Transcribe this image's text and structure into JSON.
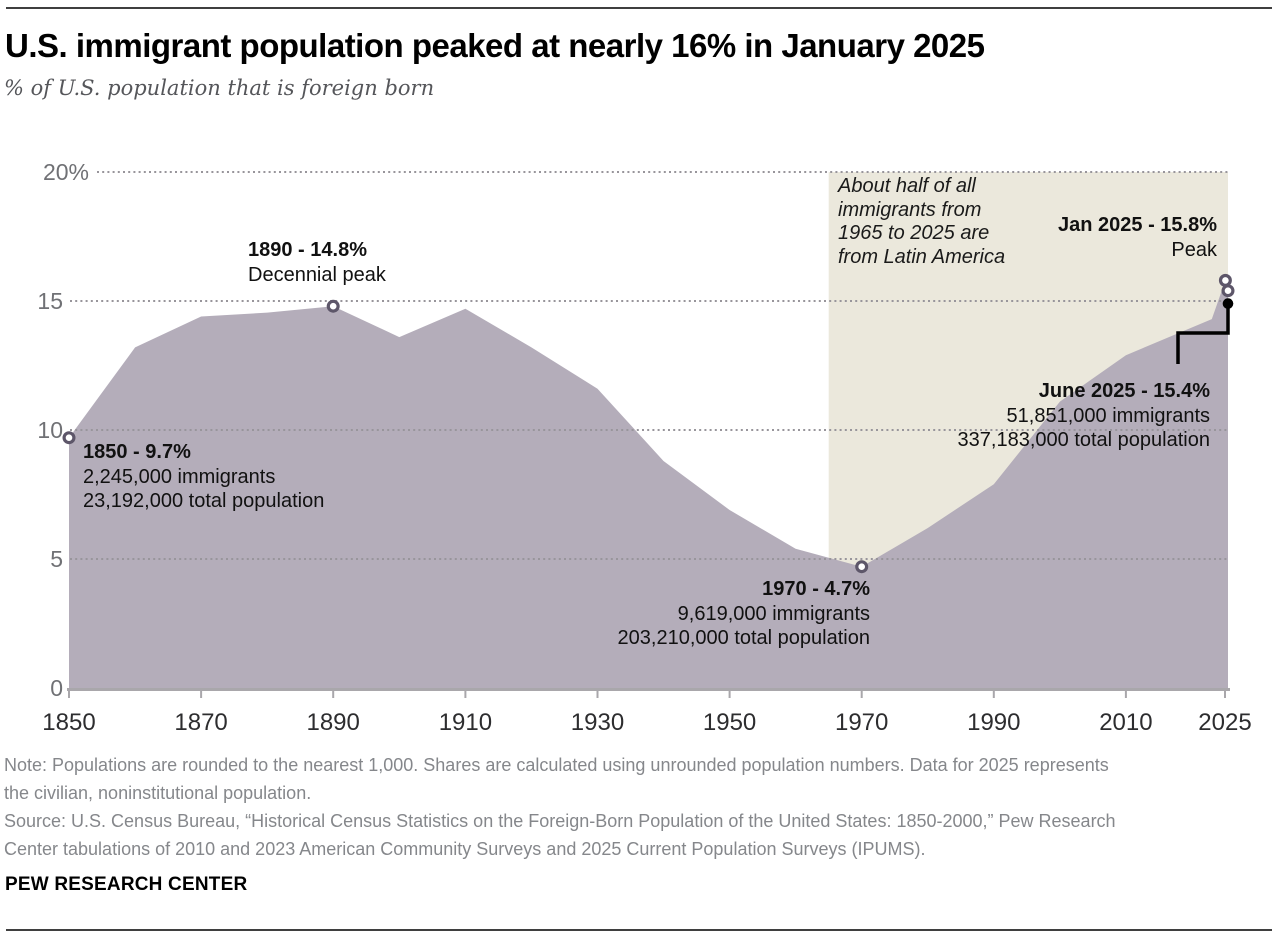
{
  "header": {
    "title": "U.S. immigrant population peaked at nearly 16% in January 2025",
    "subtitle": "% of U.S. population that is foreign born"
  },
  "chart_data": {
    "type": "area",
    "title": "U.S. immigrant population peaked at nearly 16% in January 2025",
    "subtitle": "% of U.S. population that is foreign born",
    "xlabel": "",
    "ylabel": "% of U.S. population that is foreign born",
    "xlim": [
      1850,
      2025.45
    ],
    "ylim": [
      0,
      20
    ],
    "grid": "horizontal-dotted",
    "legend": "none",
    "series": [
      {
        "name": "Foreign-born share of U.S. population (%)",
        "x": [
          1850,
          1860,
          1870,
          1880,
          1890,
          1900,
          1910,
          1920,
          1930,
          1940,
          1950,
          1960,
          1970,
          1980,
          1990,
          2000,
          2010,
          2023,
          2025.05,
          2025.45
        ],
        "values": [
          9.7,
          13.2,
          14.4,
          14.55,
          14.8,
          13.6,
          14.7,
          13.2,
          11.6,
          8.8,
          6.9,
          5.4,
          4.7,
          6.2,
          7.9,
          11.1,
          12.9,
          14.3,
          15.8,
          15.4
        ]
      }
    ],
    "xticks": [
      1850,
      1870,
      1890,
      1910,
      1930,
      1950,
      1970,
      1990,
      2010,
      2025
    ],
    "yticks": [
      {
        "value": 0,
        "label": "0"
      },
      {
        "value": 5,
        "label": "5"
      },
      {
        "value": 10,
        "label": "10"
      },
      {
        "value": 15,
        "label": "15"
      },
      {
        "value": 20,
        "label": "20%"
      }
    ],
    "area_color": "#b4adba",
    "gridline_color": "#98959b",
    "axis_color": "#a9a7ab",
    "marker_ring_color": "#5d5669",
    "leader_color": "#000000",
    "highlight_box": {
      "x_start": 1965,
      "x_end": 2025.45,
      "color": "#ebe8dc",
      "label": "About half of all\nimmigrants from\n1965 to 2025 are\nfrom Latin America"
    },
    "markers": [
      {
        "x": 1850,
        "value": 9.7,
        "style": "open"
      },
      {
        "x": 1890,
        "value": 14.8,
        "style": "open"
      },
      {
        "x": 1970,
        "value": 4.7,
        "style": "open"
      },
      {
        "x": 2025.05,
        "value": 15.8,
        "style": "open"
      },
      {
        "x": 2025.45,
        "value": 15.4,
        "style": "open"
      },
      {
        "x": 2025.45,
        "value": 14.9,
        "style": "filled"
      }
    ],
    "annotations": {
      "y1850": {
        "title": "1850 - 9.7%",
        "line1": "2,245,000 immigrants",
        "line2": "23,192,000 total population"
      },
      "y1890": {
        "title": "1890 - 14.8%",
        "line1": "Decennial peak"
      },
      "y1970": {
        "title": "1970 - 4.7%",
        "line1": "9,619,000 immigrants",
        "line2": "203,210,000 total population"
      },
      "jan2025": {
        "title": "Jan 2025 - 15.8%",
        "line1": "Peak"
      },
      "june2025": {
        "title": "June 2025 - 15.4%",
        "line1": "51,851,000 immigrants",
        "line2": "337,183,000 total population"
      }
    }
  },
  "footer": {
    "note": "Note: Populations are rounded to the nearest 1,000. Shares are calculated using unrounded population numbers. Data for 2025 represents\nthe civilian, noninstitutional population.",
    "source": "Source: U.S. Census Bureau, “Historical Census Statistics on the Foreign-Born Population of the United States: 1850-2000,” Pew Research\nCenter tabulations of 2010 and 2023 American Community Surveys and 2025 Current Population Surveys (IPUMS).",
    "brand": "PEW RESEARCH CENTER"
  }
}
